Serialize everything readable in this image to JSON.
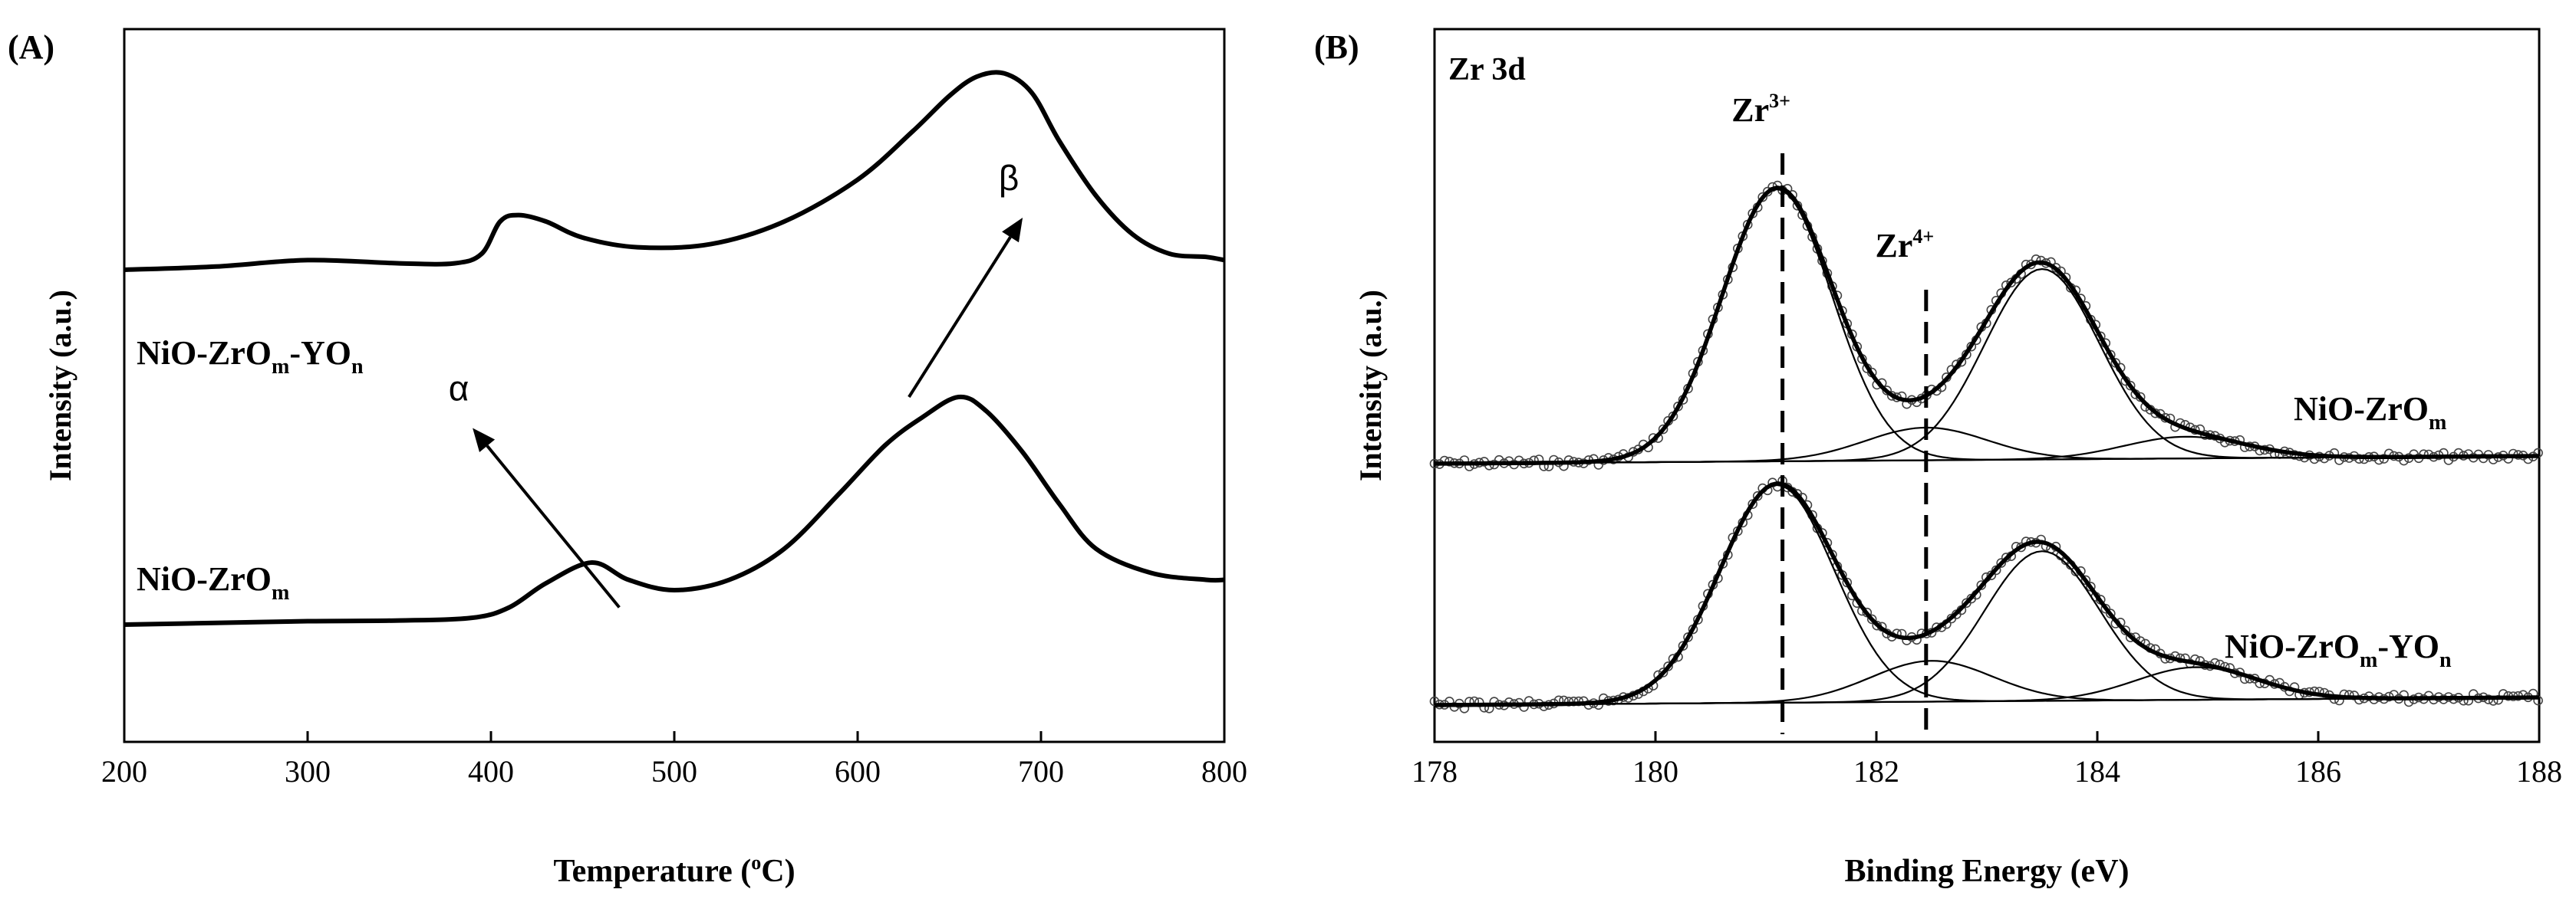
{
  "chart_data": [
    {
      "panel": "(A)",
      "type": "line",
      "xlabel_prefix": "Temperature (",
      "xlabel_sup": "o",
      "xlabel_suffix": "C)",
      "ylabel": "Intensity (a.u.)",
      "xlim": [
        200,
        800
      ],
      "xticks": [
        200,
        300,
        400,
        500,
        600,
        700,
        800
      ],
      "series": [
        {
          "name": "NiO-ZrO_m-YO_n",
          "label_main": "NiO-ZrO",
          "label_sub1": "m",
          "label_mid": "-YO",
          "label_sub2": "n",
          "x": [
            200,
            250,
            300,
            350,
            380,
            395,
            405,
            415,
            430,
            450,
            480,
            520,
            560,
            600,
            630,
            650,
            665,
            680,
            695,
            710,
            730,
            750,
            770,
            790,
            800
          ],
          "y": [
            0.4,
            0.41,
            0.43,
            0.42,
            0.42,
            0.45,
            0.55,
            0.57,
            0.55,
            0.5,
            0.47,
            0.48,
            0.55,
            0.68,
            0.83,
            0.94,
            1.0,
            1.01,
            0.95,
            0.8,
            0.63,
            0.51,
            0.45,
            0.44,
            0.43
          ]
        },
        {
          "name": "NiO-ZrO_m",
          "label_main": "NiO-ZrO",
          "label_sub1": "m",
          "x": [
            200,
            250,
            300,
            350,
            390,
            410,
            430,
            455,
            475,
            500,
            530,
            560,
            590,
            615,
            635,
            655,
            670,
            690,
            710,
            730,
            760,
            790,
            800
          ],
          "y": [
            0.0,
            0.005,
            0.01,
            0.012,
            0.02,
            0.05,
            0.12,
            0.18,
            0.13,
            0.1,
            0.13,
            0.22,
            0.38,
            0.52,
            0.6,
            0.66,
            0.62,
            0.5,
            0.35,
            0.22,
            0.15,
            0.13,
            0.13
          ]
        }
      ],
      "annotations": [
        {
          "label": "α",
          "from": [
            470,
            0.05
          ],
          "to": [
            390,
            0.57
          ]
        },
        {
          "label": "β",
          "from": [
            628,
            0.66
          ],
          "to": [
            690,
            1.18
          ]
        }
      ]
    },
    {
      "panel": "(B)",
      "type": "line",
      "title": "Zr 3d",
      "xlabel": "Binding Energy (eV)",
      "ylabel": "Intensity (a.u.)",
      "xlim": [
        178,
        188
      ],
      "xticks": [
        178,
        180,
        182,
        184,
        186,
        188
      ],
      "reference_lines": [
        {
          "x": 181.15,
          "label_main": "Zr",
          "label_sup": "3+"
        },
        {
          "x": 182.45,
          "label_main": "Zr",
          "label_sup": "4+"
        }
      ],
      "series": [
        {
          "name": "NiO-ZrO_m",
          "label_main": "NiO-ZrO",
          "label_sub1": "m",
          "components": [
            {
              "center": 181.1,
              "amplitude": 1.0,
              "sigma": 0.5
            },
            {
              "center": 182.45,
              "amplitude": 0.12,
              "sigma": 0.55
            },
            {
              "center": 183.5,
              "amplitude": 0.7,
              "sigma": 0.52
            },
            {
              "center": 184.8,
              "amplitude": 0.08,
              "sigma": 0.55
            }
          ]
        },
        {
          "name": "NiO-ZrO_m-YO_n",
          "label_main": "NiO-ZrO",
          "label_sub1": "m",
          "label_mid": "-YO",
          "label_sub2": "n",
          "components": [
            {
              "center": 181.1,
              "amplitude": 0.8,
              "sigma": 0.52
            },
            {
              "center": 182.5,
              "amplitude": 0.15,
              "sigma": 0.55
            },
            {
              "center": 183.5,
              "amplitude": 0.55,
              "sigma": 0.52
            },
            {
              "center": 184.9,
              "amplitude": 0.12,
              "sigma": 0.55
            }
          ]
        }
      ]
    }
  ]
}
